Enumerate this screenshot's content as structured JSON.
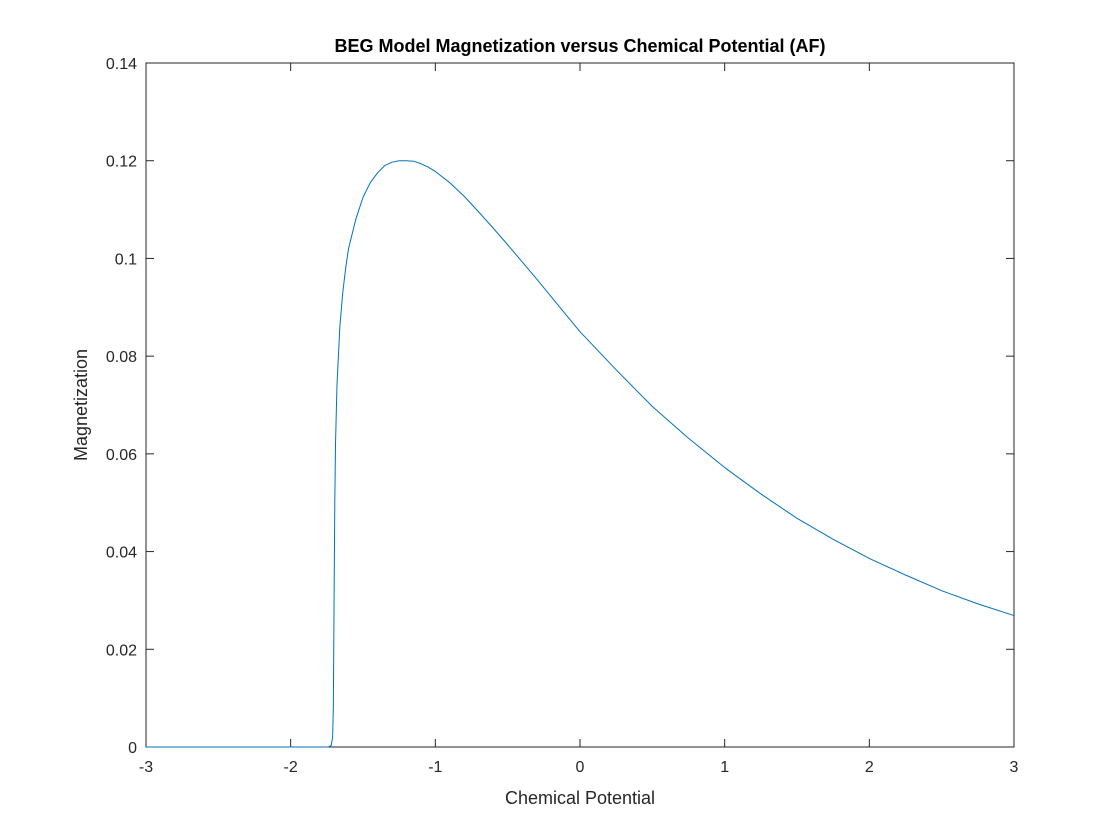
{
  "chart_data": {
    "type": "line",
    "title": "BEG Model Magnetization versus Chemical Potential (AF)",
    "xlabel": "Chemical Potential",
    "ylabel": "Magnetization",
    "xlim": [
      -3,
      3
    ],
    "ylim": [
      0,
      0.14
    ],
    "xticks": [
      -3,
      -2,
      -1,
      0,
      1,
      2,
      3
    ],
    "yticks": [
      0,
      0.02,
      0.04,
      0.06,
      0.08,
      0.1,
      0.12,
      0.14
    ],
    "xtick_labels": [
      "-3",
      "-2",
      "-1",
      "0",
      "1",
      "2",
      "3"
    ],
    "ytick_labels": [
      "0",
      "0.02",
      "0.04",
      "0.06",
      "0.08",
      "0.1",
      "0.12",
      "0.14"
    ],
    "grid": false,
    "box": true,
    "series": [
      {
        "color": "#0072BD",
        "x": [
          -3.0,
          -2.5,
          -2.0,
          -1.8,
          -1.74,
          -1.72,
          -1.71,
          -1.705,
          -1.7,
          -1.695,
          -1.69,
          -1.68,
          -1.66,
          -1.64,
          -1.62,
          -1.6,
          -1.55,
          -1.5,
          -1.45,
          -1.4,
          -1.35,
          -1.3,
          -1.25,
          -1.2,
          -1.15,
          -1.1,
          -1.05,
          -1.0,
          -0.9,
          -0.8,
          -0.7,
          -0.6,
          -0.5,
          -0.4,
          -0.3,
          -0.2,
          -0.1,
          0.0,
          0.25,
          0.5,
          0.75,
          1.0,
          1.25,
          1.5,
          1.75,
          2.0,
          2.25,
          2.5,
          2.75,
          3.0
        ],
        "y": [
          0.0,
          0.0,
          0.0,
          0.0,
          0.0,
          0.0003,
          0.002,
          0.008,
          0.03,
          0.05,
          0.062,
          0.074,
          0.086,
          0.093,
          0.098,
          0.102,
          0.108,
          0.1125,
          0.1155,
          0.1175,
          0.119,
          0.1197,
          0.12,
          0.12,
          0.1199,
          0.1194,
          0.1187,
          0.1178,
          0.1155,
          0.1127,
          0.1095,
          0.1062,
          0.1028,
          0.0993,
          0.0958,
          0.0922,
          0.0886,
          0.085,
          0.0772,
          0.0697,
          0.0632,
          0.0572,
          0.0518,
          0.0468,
          0.0425,
          0.0386,
          0.0352,
          0.032,
          0.0293,
          0.0269
        ]
      }
    ]
  }
}
